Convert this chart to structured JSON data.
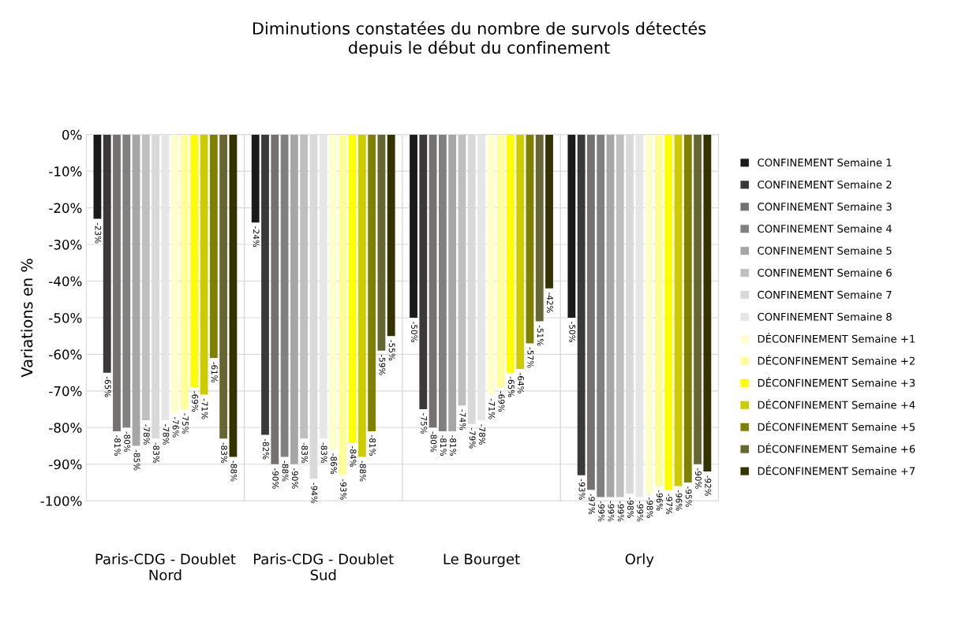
{
  "chart_data": {
    "type": "bar",
    "title": "Diminutions constatées du nombre de survols détectés\ndepuis le début du confinement",
    "ylabel": "Variations en %",
    "categories": [
      "Paris-CDG - Doublet\nNord",
      "Paris-CDG - Doublet\nSud",
      "Le Bourget",
      "Orly"
    ],
    "series": [
      {
        "name": "CONFINEMENT Semaine 1",
        "color": "#1a1a1a",
        "values": [
          -23,
          -24,
          -50,
          -50
        ],
        "value_labels": [
          "-23%",
          "-24%",
          "-50%",
          "-50%"
        ]
      },
      {
        "name": "CONFINEMENT Semaine 2",
        "color": "#3a3838",
        "values": [
          -65,
          -82,
          -75,
          -93
        ],
        "value_labels": [
          "-65%",
          "-82%",
          "-75%",
          "-93%"
        ]
      },
      {
        "name": "CONFINEMENT Semaine 3",
        "color": "#757171",
        "values": [
          -81,
          -90,
          -80,
          -97
        ],
        "value_labels": [
          "-81%",
          "-90%",
          "-80%",
          "-97%"
        ]
      },
      {
        "name": "CONFINEMENT Semaine 4",
        "color": "#808080",
        "values": [
          -80,
          -88,
          -81,
          -99
        ],
        "value_labels": [
          "-80%",
          "-88%",
          "-81%",
          "-99%"
        ]
      },
      {
        "name": "CONFINEMENT Semaine 5",
        "color": "#a6a6a6",
        "values": [
          -85,
          -90,
          -81,
          -99
        ],
        "value_labels": [
          "-85%",
          "-90%",
          "-81%",
          "-99%"
        ]
      },
      {
        "name": "CONFINEMENT Semaine 6",
        "color": "#bfbfbf",
        "values": [
          -78,
          -83,
          -74,
          -99
        ],
        "value_labels": [
          "-78%",
          "-83%",
          "-74%",
          "-99%"
        ]
      },
      {
        "name": "CONFINEMENT Semaine 7",
        "color": "#d9d9d9",
        "values": [
          -83,
          -94,
          -79,
          -98
        ],
        "value_labels": [
          "-83%",
          "-94%",
          "-79%",
          "-98%"
        ]
      },
      {
        "name": "CONFINEMENT Semaine 8",
        "color": "#e6e6e6",
        "values": [
          -78,
          -83,
          -78,
          -99
        ],
        "value_labels": [
          "-78%",
          "-83%",
          "-78%",
          "-99%"
        ]
      },
      {
        "name": "DÉCONFINEMENT Semaine +1",
        "color": "#ffffcc",
        "values": [
          -76,
          -86,
          -71,
          -98
        ],
        "value_labels": [
          "-76%",
          "-86%",
          "-71%",
          "-98%"
        ]
      },
      {
        "name": "DÉCONFINEMENT Semaine +2",
        "color": "#ffff99",
        "values": [
          -75,
          -93,
          -69,
          -96
        ],
        "value_labels": [
          "-75%",
          "-93%",
          "-69%",
          "-96%"
        ]
      },
      {
        "name": "DÉCONFINEMENT Semaine +3",
        "color": "#ffff00",
        "values": [
          -69,
          -84,
          -65,
          -97
        ],
        "value_labels": [
          "-69%",
          "-84%",
          "-65%",
          "-97%"
        ]
      },
      {
        "name": "DÉCONFINEMENT Semaine +4",
        "color": "#cccc00",
        "values": [
          -71,
          -88,
          -64,
          -96
        ],
        "value_labels": [
          "-71%",
          "-88%",
          "-64%",
          "-96%"
        ]
      },
      {
        "name": "DÉCONFINEMENT Semaine +5",
        "color": "#808000",
        "values": [
          -61,
          -81,
          -57,
          -95
        ],
        "value_labels": [
          "-61%",
          "-81%",
          "-57%",
          "-95%"
        ]
      },
      {
        "name": "DÉCONFINEMENT Semaine +6",
        "color": "#666633",
        "values": [
          -83,
          -59,
          -51,
          -90
        ],
        "value_labels": [
          "-83%",
          "-59%",
          "-51%",
          "-90%"
        ]
      },
      {
        "name": "DÉCONFINEMENT Semaine +7",
        "color": "#333300",
        "values": [
          -88,
          -55,
          -42,
          -92
        ],
        "value_labels": [
          "-88%",
          "-55%",
          "-42%",
          "-92%"
        ]
      }
    ],
    "ylim": [
      -100,
      0
    ],
    "yticks": [
      {
        "value": 0,
        "label": "0%"
      },
      {
        "value": -10,
        "label": "-10%"
      },
      {
        "value": -20,
        "label": "-20%"
      },
      {
        "value": -30,
        "label": "-30%"
      },
      {
        "value": -40,
        "label": "-40%"
      },
      {
        "value": -50,
        "label": "-50%"
      },
      {
        "value": -60,
        "label": "-60%"
      },
      {
        "value": -70,
        "label": "-70%"
      },
      {
        "value": -80,
        "label": "-80%"
      },
      {
        "value": -90,
        "label": "-90%"
      },
      {
        "value": -100,
        "label": "-100%"
      }
    ],
    "grid": true,
    "legend": "right"
  }
}
